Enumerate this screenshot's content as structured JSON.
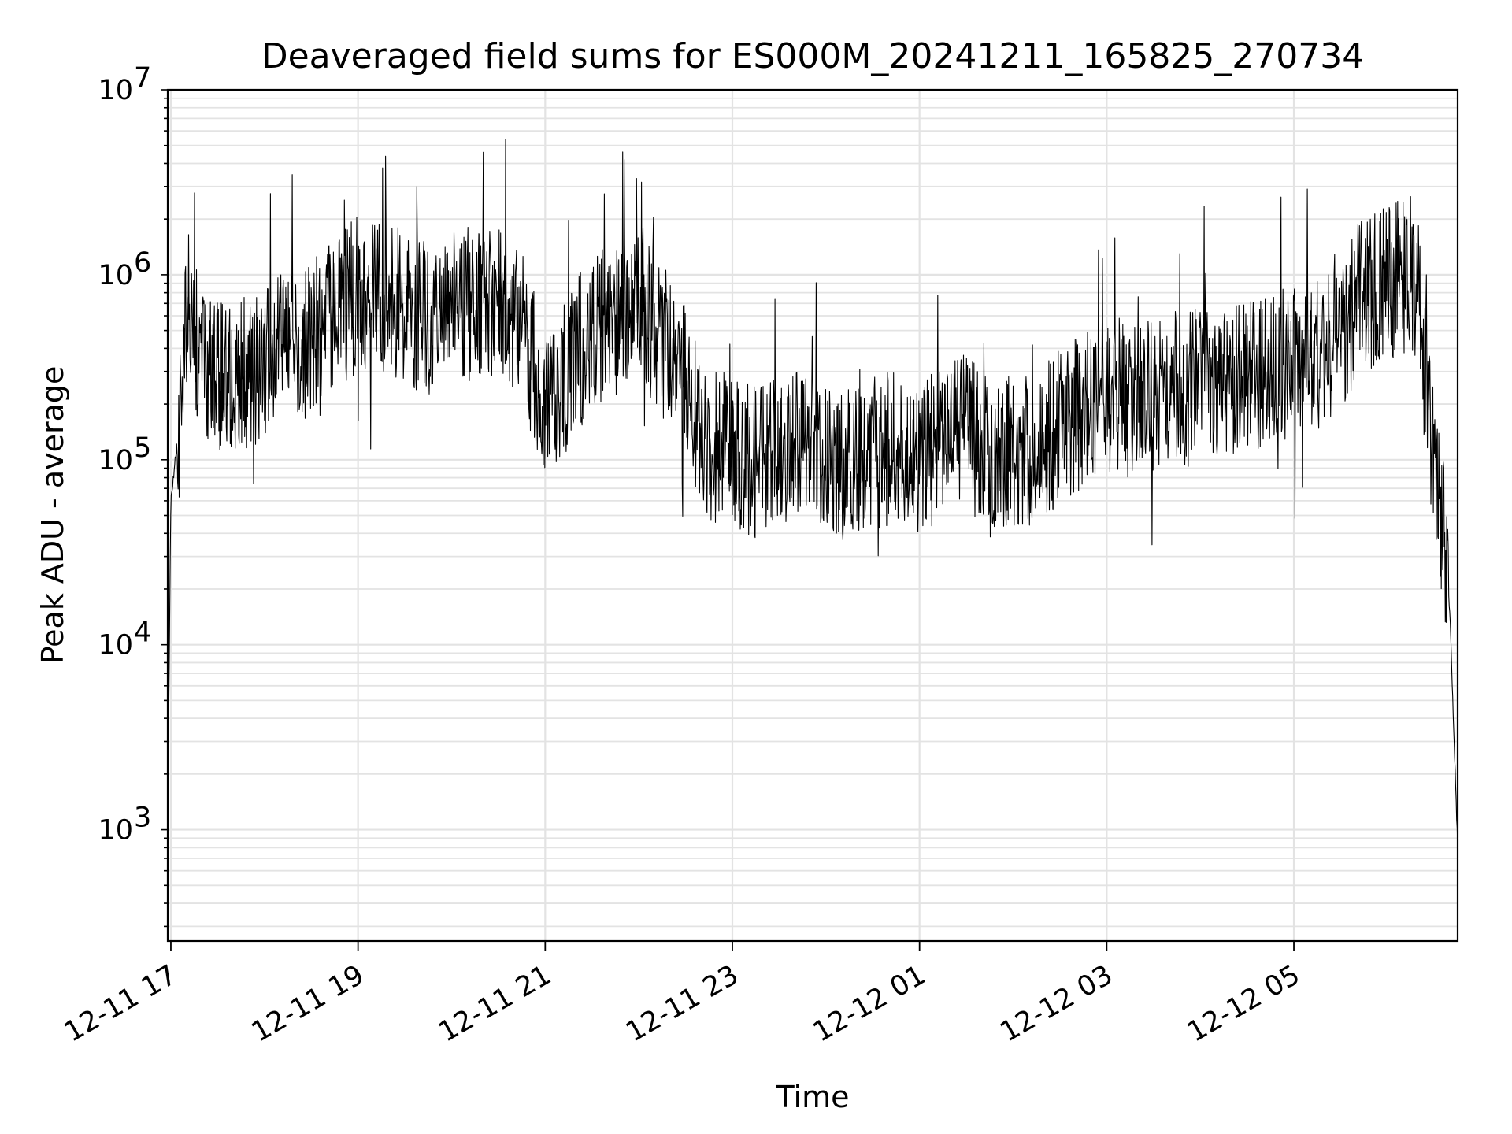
{
  "chart_data": {
    "type": "line",
    "title": "Deaveraged field sums for ES000M_20241211_165825_270734",
    "xlabel": "Time",
    "ylabel": "Peak ADU - average",
    "y_scale": "log",
    "ylim": [
      250,
      10000000
    ],
    "xlim": [
      "2024-12-11 16:58",
      "2024-12-12 06:45"
    ],
    "grid": true,
    "line_color": "#000000",
    "grid_color": "#e3e3e3",
    "x_ticks": [
      "12-11 17",
      "12-11 19",
      "12-11 21",
      "12-11 23",
      "12-12 01",
      "12-12 03",
      "12-12 05"
    ],
    "y_ticks": [
      {
        "base": "10",
        "exp": "3"
      },
      {
        "base": "10",
        "exp": "4"
      },
      {
        "base": "10",
        "exp": "5"
      },
      {
        "base": "10",
        "exp": "6"
      },
      {
        "base": "10",
        "exp": "7"
      }
    ],
    "series": [
      {
        "x": [
          "2024-12-11 16:58",
          "2024-12-11 17:00",
          "2024-12-11 17:05",
          "2024-12-11 17:10",
          "2024-12-11 17:15",
          "2024-12-11 17:20",
          "2024-12-11 17:30",
          "2024-12-11 17:45",
          "2024-12-11 18:00",
          "2024-12-11 18:15",
          "2024-12-11 18:30",
          "2024-12-11 18:45",
          "2024-12-11 19:00",
          "2024-12-11 19:15",
          "2024-12-11 19:30",
          "2024-12-11 19:45",
          "2024-12-11 20:00",
          "2024-12-11 20:15",
          "2024-12-11 20:30",
          "2024-12-11 20:45",
          "2024-12-11 21:00",
          "2024-12-11 21:15",
          "2024-12-11 21:30",
          "2024-12-11 21:45",
          "2024-12-11 22:00",
          "2024-12-11 22:15",
          "2024-12-11 22:30",
          "2024-12-11 22:45",
          "2024-12-11 23:00",
          "2024-12-11 23:15",
          "2024-12-11 23:30",
          "2024-12-11 23:45",
          "2024-12-12 00:00",
          "2024-12-12 00:15",
          "2024-12-12 00:30",
          "2024-12-12 00:45",
          "2024-12-12 01:00",
          "2024-12-12 01:15",
          "2024-12-12 01:30",
          "2024-12-12 01:45",
          "2024-12-12 02:00",
          "2024-12-12 02:15",
          "2024-12-12 02:30",
          "2024-12-12 02:45",
          "2024-12-12 03:00",
          "2024-12-12 03:15",
          "2024-12-12 03:30",
          "2024-12-12 03:45",
          "2024-12-12 04:00",
          "2024-12-12 04:15",
          "2024-12-12 04:30",
          "2024-12-12 04:45",
          "2024-12-12 05:00",
          "2024-12-12 05:15",
          "2024-12-12 05:30",
          "2024-12-12 05:45",
          "2024-12-12 06:00",
          "2024-12-12 06:15",
          "2024-12-12 06:20",
          "2024-12-12 06:25",
          "2024-12-12 06:30",
          "2024-12-12 06:35",
          "2024-12-12 06:40",
          "2024-12-12 06:45"
        ],
        "y": [
          1300,
          60000,
          150000,
          700000,
          450000,
          350000,
          300000,
          280000,
          350000,
          400000,
          450000,
          600000,
          800000,
          700000,
          650000,
          600000,
          650000,
          700000,
          750000,
          550000,
          200000,
          300000,
          500000,
          550000,
          700000,
          450000,
          250000,
          120000,
          110000,
          100000,
          110000,
          120000,
          90000,
          100000,
          110000,
          120000,
          100000,
          130000,
          140000,
          100000,
          110000,
          120000,
          150000,
          180000,
          200000,
          210000,
          220000,
          240000,
          250000,
          270000,
          290000,
          310000,
          330000,
          350000,
          500000,
          800000,
          900000,
          1000000,
          700000,
          250000,
          80000,
          50000,
          15000,
          800
        ]
      }
    ]
  }
}
